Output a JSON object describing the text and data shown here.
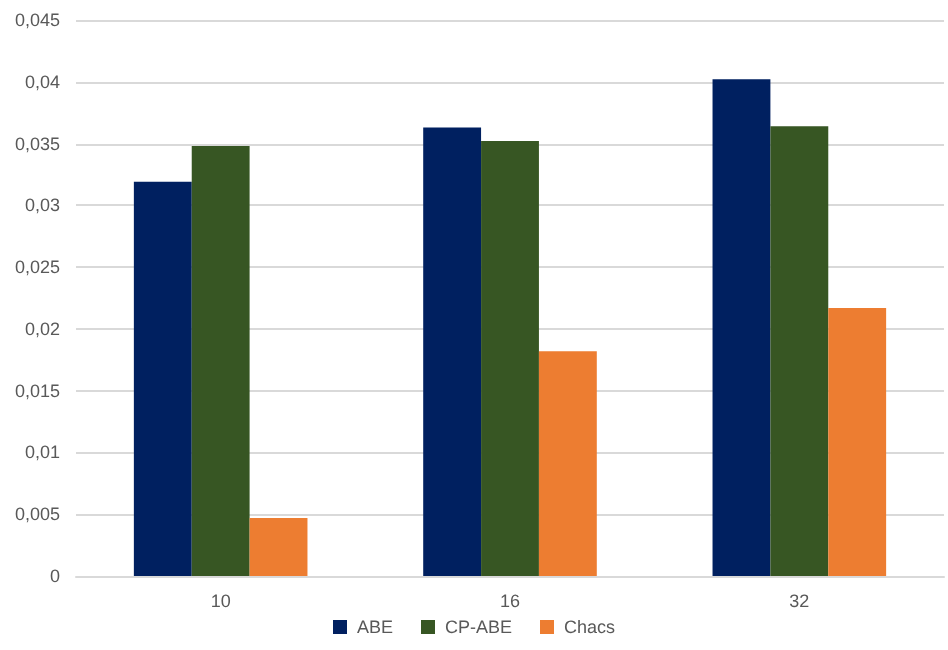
{
  "chart_data": {
    "type": "bar",
    "categories": [
      "10",
      "16",
      "32"
    ],
    "series": [
      {
        "name": "ABE",
        "color": "#002060",
        "values": [
          0.0319,
          0.0363,
          0.0402
        ]
      },
      {
        "name": "CP-ABE",
        "color": "#375623",
        "values": [
          0.0348,
          0.0352,
          0.0364
        ]
      },
      {
        "name": "Chacs",
        "color": "#ed7d31",
        "values": [
          0.0047,
          0.0182,
          0.0217
        ]
      }
    ],
    "ylim": [
      0,
      0.045
    ],
    "yticks": [
      0,
      {
        "value": 0.005,
        "label": "0,005"
      },
      {
        "value": 0.01,
        "label": "0,01"
      },
      {
        "value": 0.015,
        "label": "0,015"
      },
      {
        "value": 0.02,
        "label": "0,02"
      },
      {
        "value": 0.025,
        "label": "0,025"
      },
      {
        "value": 0.03,
        "label": "0,03"
      },
      {
        "value": 0.035,
        "label": "0,035"
      },
      {
        "value": 0.04,
        "label": "0,04"
      },
      {
        "value": 0.045,
        "label": "0,045"
      }
    ],
    "grid": "y",
    "legend": "bottom"
  }
}
